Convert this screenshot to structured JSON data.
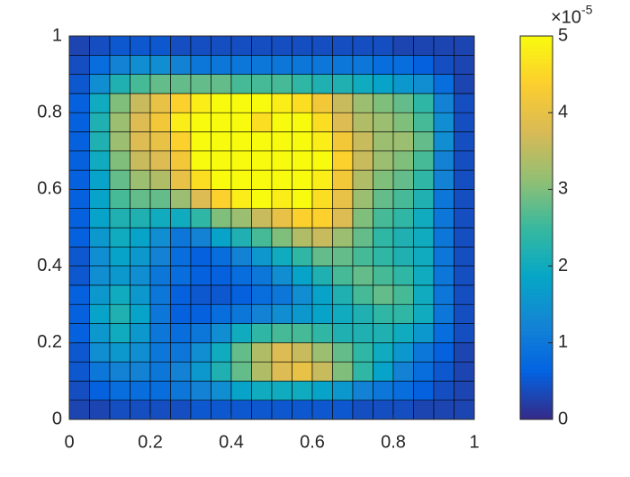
{
  "chart_data": {
    "type": "heatmap",
    "x": [
      0,
      0.05,
      0.1,
      0.15,
      0.2,
      0.25,
      0.3,
      0.35,
      0.4,
      0.45,
      0.5,
      0.55,
      0.6,
      0.65,
      0.7,
      0.75,
      0.8,
      0.85,
      0.9,
      0.95,
      1
    ],
    "y": [
      0,
      0.05,
      0.1,
      0.15,
      0.2,
      0.25,
      0.3,
      0.35,
      0.4,
      0.45,
      0.5,
      0.55,
      0.6,
      0.65,
      0.7,
      0.75,
      0.8,
      0.85,
      0.9,
      0.95,
      1
    ],
    "z": [
      [
        0.3,
        0.3,
        0.4,
        0.4,
        0.4,
        0.4,
        0.5,
        0.5,
        0.5,
        0.5,
        0.5,
        0.5,
        0.5,
        0.5,
        0.4,
        0.4,
        0.4,
        0.3,
        0.3,
        0.3
      ],
      [
        0.4,
        0.6,
        0.8,
        0.8,
        0.8,
        1.0,
        1.2,
        1.4,
        1.8,
        2.0,
        2.0,
        2.0,
        1.8,
        1.6,
        1.2,
        1.0,
        0.8,
        0.6,
        0.4,
        0.3
      ],
      [
        0.5,
        1.0,
        1.2,
        1.2,
        1.0,
        1.2,
        1.6,
        2.2,
        2.8,
        3.4,
        3.8,
        4.0,
        3.6,
        3.0,
        2.4,
        1.8,
        1.2,
        0.8,
        0.5,
        0.3
      ],
      [
        0.5,
        1.4,
        1.6,
        1.4,
        1.0,
        1.0,
        1.4,
        2.0,
        2.8,
        3.4,
        3.8,
        3.6,
        3.2,
        2.8,
        2.4,
        2.0,
        1.6,
        1.0,
        0.6,
        0.3
      ],
      [
        0.6,
        1.6,
        2.0,
        1.6,
        1.0,
        0.8,
        1.0,
        1.4,
        2.0,
        2.4,
        2.6,
        2.6,
        2.4,
        2.2,
        2.2,
        2.2,
        2.0,
        1.6,
        0.8,
        0.4
      ],
      [
        0.6,
        1.8,
        2.2,
        1.8,
        1.0,
        0.6,
        0.6,
        0.8,
        1.0,
        1.2,
        1.4,
        1.6,
        1.8,
        2.0,
        2.2,
        2.4,
        2.4,
        2.0,
        1.0,
        0.4
      ],
      [
        0.6,
        1.6,
        2.0,
        1.6,
        1.0,
        0.6,
        0.5,
        0.5,
        0.6,
        0.8,
        1.0,
        1.4,
        1.8,
        2.2,
        2.6,
        2.8,
        2.6,
        2.0,
        1.0,
        0.4
      ],
      [
        0.5,
        1.4,
        1.6,
        1.4,
        1.0,
        0.8,
        0.6,
        0.6,
        0.8,
        1.0,
        1.4,
        1.8,
        2.2,
        2.6,
        2.8,
        2.6,
        2.4,
        2.0,
        1.0,
        0.4
      ],
      [
        0.5,
        1.4,
        1.8,
        1.6,
        1.2,
        0.8,
        0.6,
        0.8,
        1.2,
        1.6,
        2.0,
        2.4,
        2.8,
        2.8,
        2.6,
        2.4,
        2.2,
        2.0,
        1.0,
        0.4
      ],
      [
        0.6,
        1.6,
        2.0,
        1.8,
        1.4,
        1.0,
        1.2,
        1.8,
        2.2,
        2.6,
        3.0,
        3.4,
        3.6,
        3.2,
        2.8,
        2.4,
        2.2,
        2.0,
        1.0,
        0.4
      ],
      [
        0.6,
        1.8,
        2.2,
        2.2,
        2.0,
        2.0,
        2.4,
        3.0,
        3.2,
        3.6,
        4.0,
        4.4,
        4.4,
        3.8,
        3.0,
        2.6,
        2.4,
        2.0,
        1.0,
        0.4
      ],
      [
        0.6,
        1.8,
        2.6,
        2.8,
        2.8,
        3.2,
        3.8,
        4.4,
        4.8,
        5.0,
        4.8,
        5.0,
        4.6,
        4.0,
        3.2,
        2.8,
        2.6,
        2.2,
        1.0,
        0.4
      ],
      [
        0.6,
        1.8,
        2.8,
        3.2,
        3.4,
        4.0,
        4.6,
        5.0,
        5.0,
        5.0,
        5.0,
        5.0,
        4.8,
        4.2,
        3.4,
        3.0,
        2.8,
        2.4,
        1.2,
        0.4
      ],
      [
        0.6,
        2.0,
        3.0,
        3.6,
        3.8,
        4.2,
        5.0,
        5.0,
        5.0,
        5.0,
        5.0,
        5.0,
        5.0,
        4.4,
        3.6,
        3.2,
        3.0,
        2.6,
        1.2,
        0.4
      ],
      [
        0.6,
        2.2,
        3.2,
        3.8,
        4.0,
        4.4,
        5.0,
        5.0,
        5.0,
        5.0,
        5.0,
        5.0,
        4.8,
        4.2,
        3.6,
        3.2,
        3.2,
        2.8,
        1.4,
        0.4
      ],
      [
        0.6,
        2.2,
        3.2,
        3.8,
        4.2,
        4.8,
        5.0,
        5.0,
        5.0,
        4.6,
        5.0,
        5.0,
        4.6,
        3.8,
        3.4,
        3.2,
        3.0,
        2.6,
        1.4,
        0.4
      ],
      [
        0.6,
        2.0,
        3.0,
        3.6,
        4.0,
        4.4,
        4.8,
        5.0,
        5.0,
        5.0,
        4.8,
        4.6,
        4.2,
        3.6,
        3.2,
        3.0,
        2.8,
        2.4,
        1.2,
        0.4
      ],
      [
        0.5,
        1.4,
        2.2,
        2.6,
        2.8,
        2.8,
        2.8,
        2.8,
        2.6,
        2.6,
        2.6,
        2.4,
        2.2,
        2.2,
        2.0,
        1.8,
        1.6,
        1.4,
        0.8,
        0.3
      ],
      [
        0.4,
        0.8,
        1.2,
        1.4,
        1.4,
        1.2,
        1.0,
        1.0,
        1.0,
        1.0,
        1.0,
        1.0,
        1.0,
        1.0,
        1.0,
        0.8,
        0.8,
        0.6,
        0.4,
        0.3
      ],
      [
        0.3,
        0.4,
        0.5,
        0.5,
        0.5,
        0.4,
        0.4,
        0.4,
        0.4,
        0.4,
        0.4,
        0.4,
        0.4,
        0.4,
        0.4,
        0.4,
        0.3,
        0.3,
        0.3,
        0.3
      ]
    ],
    "xlim": [
      0,
      1
    ],
    "xticks": [
      0,
      0.2,
      0.4,
      0.6,
      0.8,
      1
    ],
    "ylim": [
      0,
      1
    ],
    "yticks": [
      0,
      0.2,
      0.4,
      0.6,
      0.8,
      1
    ],
    "clim": [
      0,
      5
    ],
    "cticks": [
      0,
      1,
      2,
      3,
      4,
      5
    ],
    "colorbar_exponent_base": "×10",
    "colorbar_exponent": "-5",
    "edgecolor": "#000000",
    "colormap": [
      "#352a87",
      "#0363e1",
      "#1485d4",
      "#06a7c6",
      "#38b99e",
      "#92bf73",
      "#d9ba56",
      "#fcce2e",
      "#f9fb0e"
    ]
  }
}
